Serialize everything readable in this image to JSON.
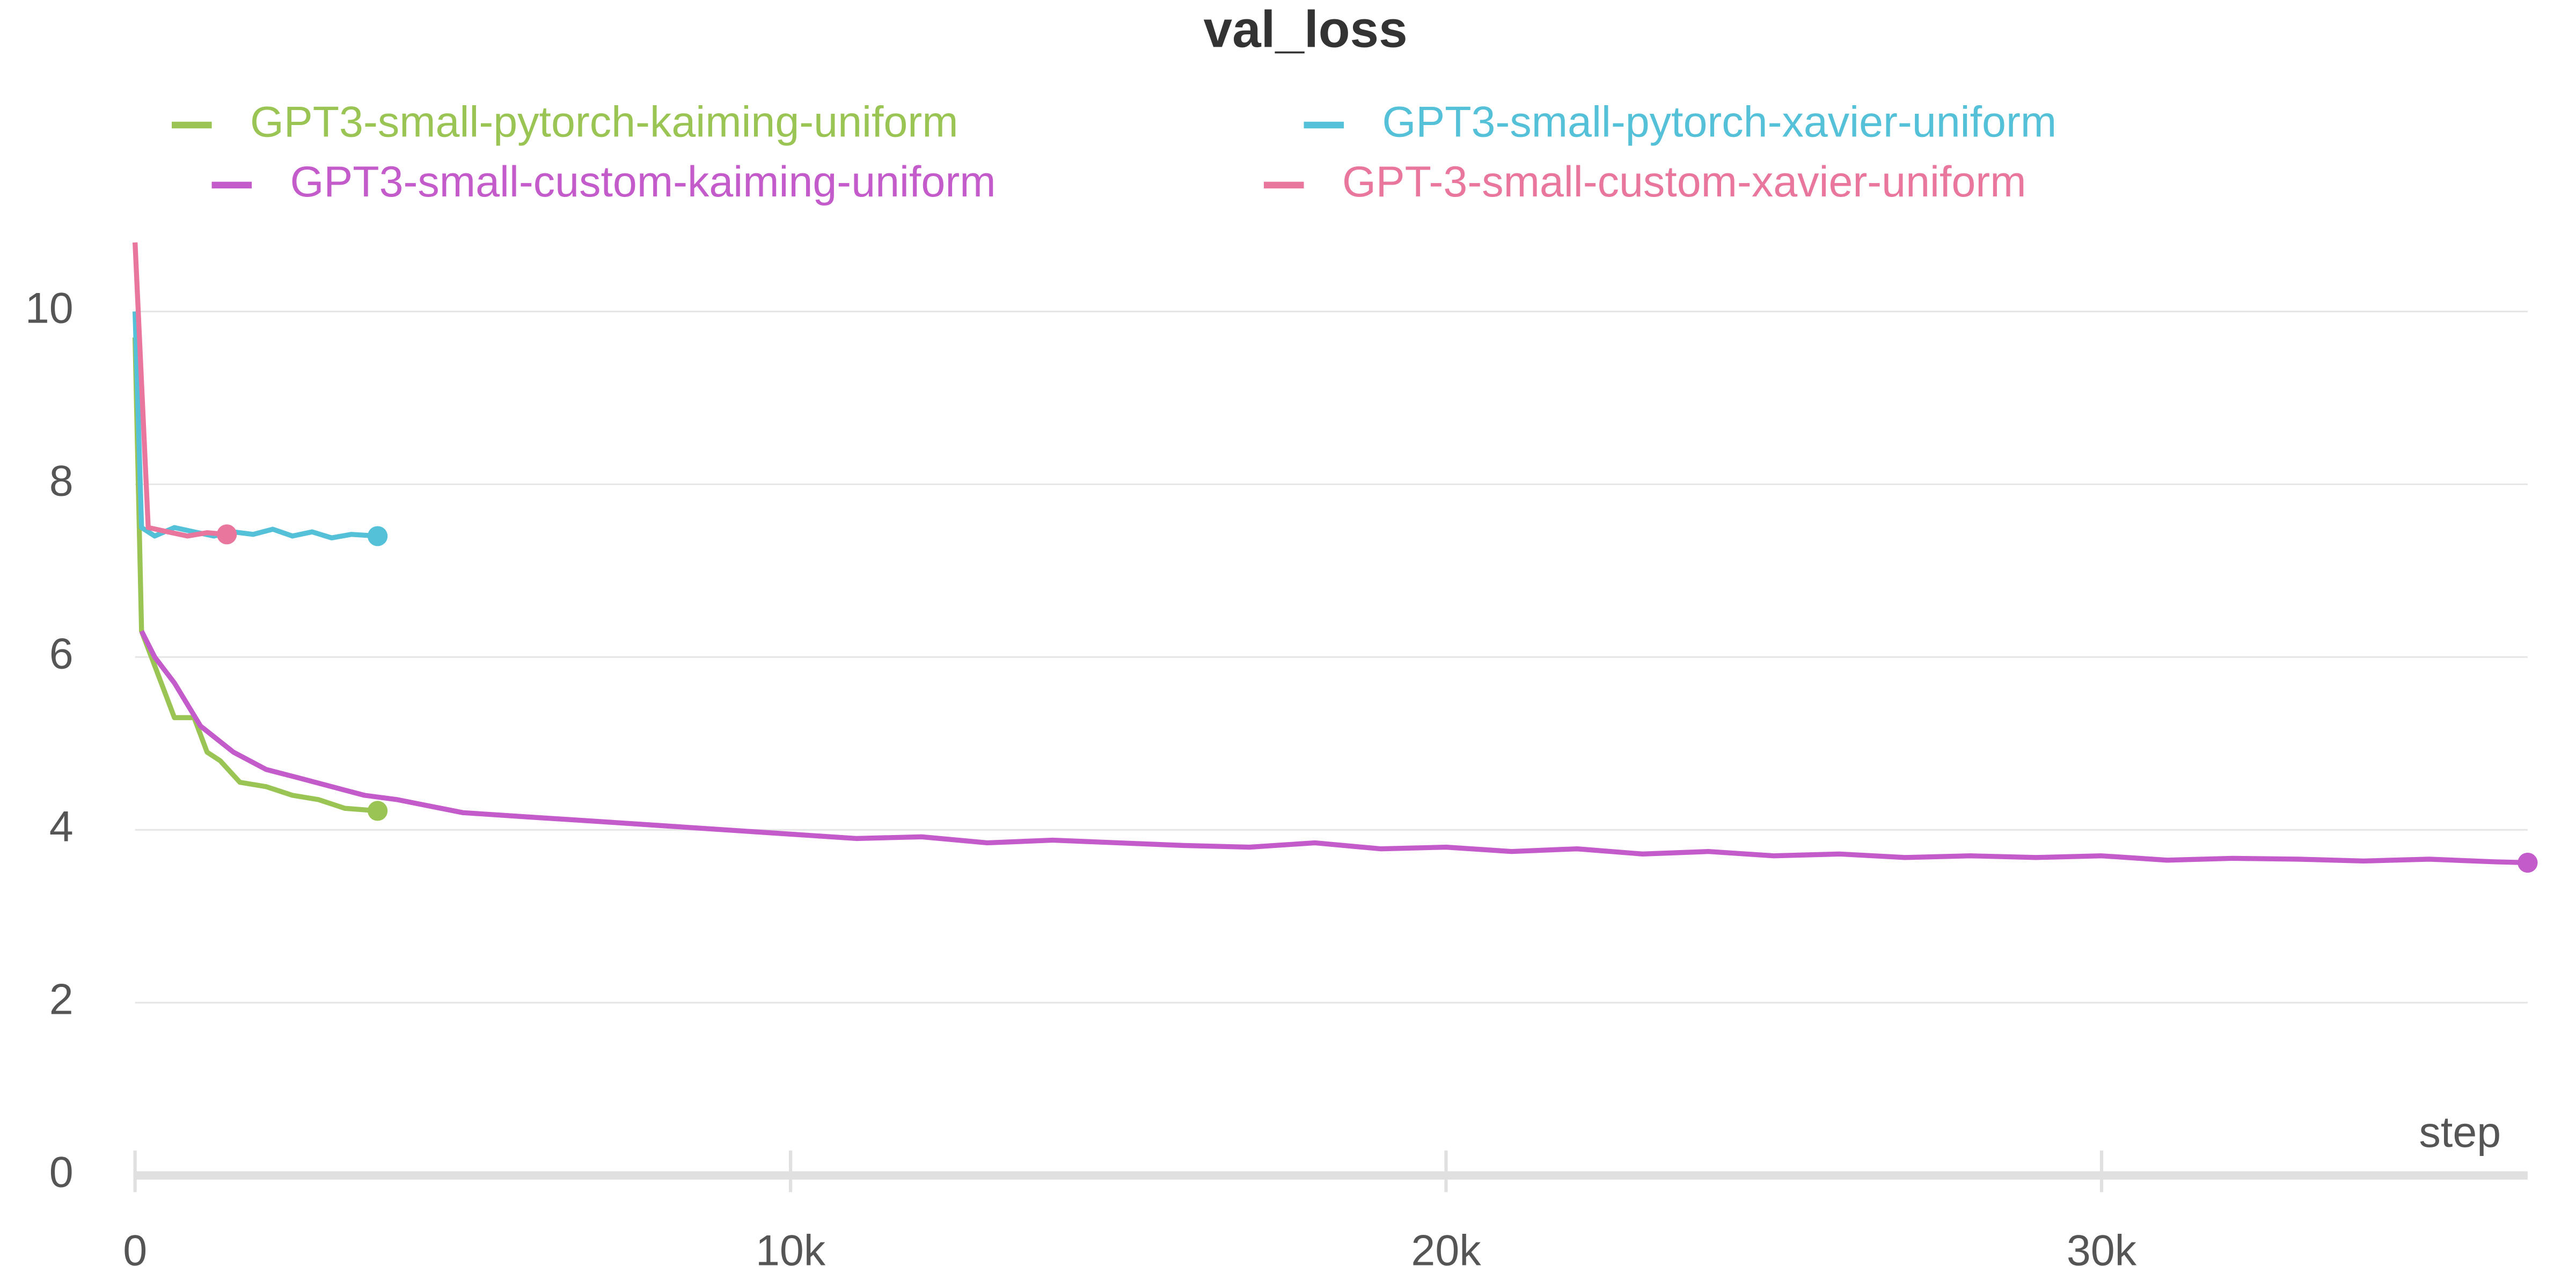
{
  "chart_data": {
    "type": "line",
    "title": "val_loss",
    "x_label": "step",
    "xlim": [
      0,
      36500
    ],
    "ylim": [
      0,
      11
    ],
    "xticks": [
      0,
      {
        "value": 10000,
        "label": "10k"
      },
      {
        "value": 20000,
        "label": "20k"
      },
      {
        "value": 30000,
        "label": "30k"
      }
    ],
    "yticks": [
      0,
      2,
      4,
      6,
      8,
      10
    ],
    "grid": true,
    "series": [
      {
        "name": "GPT3-small-pytorch-kaiming-uniform",
        "color": "#9ac554",
        "x": [
          0,
          100,
          300,
          600,
          900,
          1100,
          1300,
          1600,
          2000,
          2400,
          2800,
          3200,
          3700
        ],
        "values": [
          9.7,
          6.3,
          5.9,
          5.3,
          5.3,
          4.9,
          4.8,
          4.55,
          4.5,
          4.4,
          4.35,
          4.25,
          4.22
        ]
      },
      {
        "name": "GPT3-small-pytorch-xavier-uniform",
        "color": "#55c1d8",
        "x": [
          0,
          100,
          300,
          600,
          900,
          1200,
          1500,
          1800,
          2100,
          2400,
          2700,
          3000,
          3300,
          3700
        ],
        "values": [
          10.0,
          7.5,
          7.4,
          7.5,
          7.45,
          7.4,
          7.45,
          7.42,
          7.48,
          7.4,
          7.45,
          7.38,
          7.42,
          7.4
        ]
      },
      {
        "name": "GPT3-small-custom-kaiming-uniform",
        "color": "#c45bcb",
        "x": [
          100,
          300,
          600,
          1000,
          1500,
          2000,
          2500,
          3000,
          3500,
          4000,
          5000,
          6000,
          7000,
          8000,
          9000,
          10000,
          11000,
          12000,
          13000,
          14000,
          15000,
          16000,
          17000,
          18000,
          19000,
          20000,
          21000,
          22000,
          23000,
          24000,
          25000,
          26000,
          27000,
          28000,
          29000,
          30000,
          31000,
          32000,
          33000,
          34000,
          35000,
          36000,
          36500
        ],
        "values": [
          6.3,
          6.0,
          5.7,
          5.2,
          4.9,
          4.7,
          4.6,
          4.5,
          4.4,
          4.35,
          4.2,
          4.15,
          4.1,
          4.05,
          4.0,
          3.95,
          3.9,
          3.92,
          3.85,
          3.88,
          3.85,
          3.82,
          3.8,
          3.85,
          3.78,
          3.8,
          3.75,
          3.78,
          3.72,
          3.75,
          3.7,
          3.72,
          3.68,
          3.7,
          3.68,
          3.7,
          3.65,
          3.67,
          3.66,
          3.64,
          3.66,
          3.63,
          3.62
        ]
      },
      {
        "name": "GPT-3-small-custom-xavier-uniform",
        "color": "#e9769d",
        "x": [
          0,
          200,
          500,
          800,
          1100,
          1400
        ],
        "values": [
          10.8,
          7.5,
          7.45,
          7.4,
          7.44,
          7.42
        ]
      }
    ]
  }
}
